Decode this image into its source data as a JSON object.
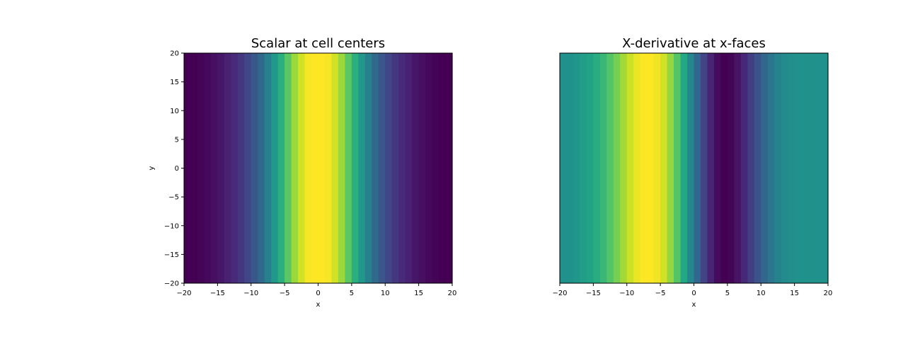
{
  "chart_data": [
    {
      "type": "heatmap",
      "title": "Scalar at cell centers",
      "xlabel": "x",
      "ylabel": "y",
      "xlim": [
        -20,
        20
      ],
      "ylim": [
        -20,
        20
      ],
      "xticks": [
        -20,
        -15,
        -10,
        -5,
        0,
        5,
        10,
        15,
        20
      ],
      "yticks": [
        -20,
        -15,
        -10,
        -5,
        0,
        5,
        10,
        15,
        20
      ],
      "xtick_labels": [
        "−20",
        "−15",
        "−10",
        "−5",
        "0",
        "5",
        "10",
        "15",
        "20"
      ],
      "ytick_labels": [
        "−20",
        "−15",
        "−10",
        "−5",
        "0",
        "5",
        "10",
        "15",
        "20"
      ],
      "colormap": "viridis",
      "grid": false,
      "x_edges": [
        -20,
        -19,
        -18,
        -17,
        -16,
        -15,
        -14,
        -13,
        -12,
        -11,
        -10,
        -9,
        -8,
        -7,
        -6,
        -5,
        -4,
        -3,
        -2,
        -1,
        0,
        1,
        2,
        3,
        4,
        5,
        6,
        7,
        8,
        9,
        10,
        11,
        12,
        13,
        14,
        15,
        16,
        17,
        18,
        19,
        20
      ],
      "values": [
        0.0,
        0.0,
        0.01,
        0.02,
        0.04,
        0.06,
        0.09,
        0.12,
        0.16,
        0.21,
        0.27,
        0.34,
        0.43,
        0.53,
        0.63,
        0.74,
        0.85,
        0.93,
        0.99,
        1.0,
        1.0,
        0.99,
        0.93,
        0.85,
        0.74,
        0.63,
        0.53,
        0.43,
        0.34,
        0.27,
        0.21,
        0.16,
        0.12,
        0.09,
        0.06,
        0.04,
        0.02,
        0.01,
        0.0,
        0.0
      ]
    },
    {
      "type": "heatmap",
      "title": "X-derivative at x-faces",
      "xlabel": "x",
      "ylabel": "",
      "xlim": [
        -20,
        20
      ],
      "ylim": [
        -20,
        20
      ],
      "xticks": [
        -20,
        -15,
        -10,
        -5,
        0,
        5,
        10,
        15,
        20
      ],
      "yticks": [],
      "xtick_labels": [
        "−20",
        "−15",
        "−10",
        "−5",
        "0",
        "5",
        "10",
        "15",
        "20"
      ],
      "ytick_labels": [],
      "colormap": "viridis",
      "grid": false,
      "x_edges": [
        -20,
        -19,
        -18,
        -17,
        -16,
        -15,
        -14,
        -13,
        -12,
        -11,
        -10,
        -9,
        -8,
        -7,
        -6,
        -5,
        -4,
        -3,
        -2,
        -1,
        0,
        1,
        2,
        3,
        4,
        5,
        6,
        7,
        8,
        9,
        10,
        11,
        12,
        13,
        14,
        15,
        16,
        17,
        18,
        19,
        20
      ],
      "values": [
        0.5,
        0.5,
        0.52,
        0.55,
        0.58,
        0.62,
        0.67,
        0.73,
        0.79,
        0.86,
        0.92,
        0.97,
        1.0,
        1.0,
        0.98,
        0.93,
        0.84,
        0.73,
        0.6,
        0.46,
        0.33,
        0.2,
        0.1,
        0.03,
        0.0,
        0.01,
        0.05,
        0.11,
        0.18,
        0.26,
        0.33,
        0.39,
        0.44,
        0.47,
        0.49,
        0.5,
        0.5,
        0.5,
        0.5,
        0.5
      ]
    }
  ]
}
